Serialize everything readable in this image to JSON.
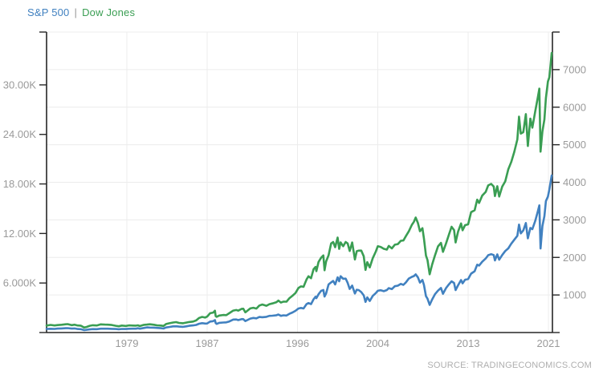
{
  "legend": {
    "sp500_label": "S&P 500",
    "separator": "|",
    "dow_label": "Dow Jones"
  },
  "source": "SOURCE: TRADINGECONOMICS.COM",
  "colors": {
    "sp500": "#4181c0",
    "dow": "#3a9e53",
    "axis": "#262626",
    "grid": "#ececec",
    "tick_label": "#9a9a9a",
    "legend_separator": "#999999",
    "source_text": "#aeaeae",
    "background": "#ffffff"
  },
  "chart_data": {
    "type": "line",
    "title": "",
    "legend_position": "top-left",
    "grid": true,
    "x_axis": {
      "range": [
        1971.0,
        2021.4
      ],
      "tick_values": [
        1979,
        1987,
        1996,
        2004,
        2013,
        2021
      ],
      "tick_labels": [
        "1979",
        "1987",
        "1996",
        "2004",
        "2013",
        "2021"
      ]
    },
    "y_axis_left": {
      "series": "Dow Jones",
      "range": [
        0,
        36400
      ],
      "tick_values": [
        6000,
        12000,
        18000,
        24000,
        30000
      ],
      "tick_labels": [
        "6.000K",
        "12.00K",
        "18.00K",
        "24.00K",
        "30.00K"
      ]
    },
    "y_axis_right": {
      "series": "S&P 500",
      "range": [
        0,
        8000
      ],
      "tick_values": [
        1000,
        2000,
        3000,
        4000,
        5000,
        6000,
        7000
      ],
      "tick_labels": [
        "1000",
        "2000",
        "3000",
        "4000",
        "5000",
        "6000",
        "7000"
      ],
      "gridline_values": [
        1000,
        2000,
        3000,
        4000,
        5000,
        6000,
        7000,
        8000
      ]
    },
    "x": [
      1971.0,
      1971.4,
      1971.8,
      1972.1,
      1972.5,
      1972.9,
      1973.1,
      1973.5,
      1973.8,
      1974.1,
      1974.4,
      1974.75,
      1975.0,
      1975.3,
      1975.6,
      1976.0,
      1976.4,
      1976.8,
      1977.1,
      1977.5,
      1977.9,
      1978.2,
      1978.5,
      1978.9,
      1979.2,
      1979.6,
      1979.9,
      1980.1,
      1980.3,
      1980.7,
      1981.0,
      1981.3,
      1981.7,
      1982.0,
      1982.4,
      1982.65,
      1982.9,
      1983.2,
      1983.6,
      1983.9,
      1984.2,
      1984.6,
      1984.9,
      1985.2,
      1985.6,
      1985.9,
      1986.2,
      1986.5,
      1986.8,
      1987.0,
      1987.3,
      1987.6,
      1987.78,
      1987.85,
      1987.95,
      1988.2,
      1988.6,
      1988.9,
      1989.2,
      1989.6,
      1989.9,
      1990.1,
      1990.45,
      1990.6,
      1990.8,
      1991.0,
      1991.3,
      1991.6,
      1991.9,
      1992.2,
      1992.5,
      1992.9,
      1993.2,
      1993.5,
      1993.9,
      1994.1,
      1994.35,
      1994.6,
      1994.9,
      1995.2,
      1995.5,
      1995.8,
      1996.1,
      1996.35,
      1996.6,
      1996.9,
      1997.1,
      1997.35,
      1997.6,
      1997.8,
      1997.88,
      1998.1,
      1998.35,
      1998.58,
      1998.7,
      1998.85,
      1999.1,
      1999.35,
      1999.55,
      1999.75,
      2000.0,
      2000.15,
      2000.3,
      2000.55,
      2000.8,
      2001.0,
      2001.2,
      2001.45,
      2001.72,
      2001.9,
      2002.1,
      2002.35,
      2002.6,
      2002.78,
      2002.95,
      2003.2,
      2003.5,
      2003.8,
      2004.0,
      2004.3,
      2004.6,
      2004.9,
      2005.1,
      2005.4,
      2005.7,
      2006.0,
      2006.3,
      2006.55,
      2006.8,
      2007.1,
      2007.4,
      2007.6,
      2007.78,
      2008.0,
      2008.2,
      2008.45,
      2008.6,
      2008.8,
      2008.95,
      2009.17,
      2009.4,
      2009.7,
      2010.0,
      2010.3,
      2010.5,
      2010.8,
      2011.1,
      2011.35,
      2011.6,
      2011.75,
      2012.0,
      2012.3,
      2012.45,
      2012.7,
      2013.0,
      2013.3,
      2013.65,
      2013.9,
      2014.1,
      2014.4,
      2014.75,
      2015.0,
      2015.3,
      2015.55,
      2015.67,
      2015.9,
      2016.1,
      2016.4,
      2016.7,
      2017.0,
      2017.3,
      2017.6,
      2017.9,
      2018.07,
      2018.25,
      2018.5,
      2018.75,
      2018.95,
      2019.2,
      2019.4,
      2019.7,
      2019.95,
      2020.1,
      2020.22,
      2020.4,
      2020.6,
      2020.75,
      2020.95,
      2021.1,
      2021.33
    ],
    "series": [
      {
        "name": "S&P 500",
        "axis": "right",
        "color": "#4181c0",
        "values": [
          95,
          101,
          95,
          104,
          108,
          116,
          118,
          104,
          108,
          94,
          90,
          64,
          72,
          84,
          92,
          90,
          102,
          103,
          102,
          99,
          93,
          88,
          96,
          94,
          100,
          103,
          103,
          114,
          102,
          122,
          136,
          133,
          130,
          123,
          116,
          107,
          135,
          148,
          164,
          166,
          157,
          151,
          164,
          180,
          190,
          202,
          235,
          250,
          238,
          242,
          292,
          302,
          330,
          252,
          231,
          258,
          266,
          272,
          295,
          346,
          348,
          330,
          358,
          356,
          306,
          330,
          372,
          388,
          377,
          413,
          408,
          418,
          444,
          448,
          461,
          481,
          444,
          458,
          453,
          500,
          533,
          578,
          640,
          654,
          640,
          757,
          786,
          757,
          885,
          954,
          915,
          1020,
          1110,
          1133,
          957,
          1040,
          1280,
          1335,
          1373,
          1280,
          1469,
          1366,
          1499,
          1431,
          1436,
          1320,
          1160,
          1250,
          1040,
          1140,
          1130,
          1077,
          990,
          815,
          936,
          841,
          975,
          1050,
          1112,
          1126,
          1101,
          1130,
          1181,
          1156,
          1234,
          1248,
          1295,
          1270,
          1336,
          1438,
          1482,
          1503,
          1549,
          1468,
          1330,
          1400,
          1267,
          969,
          903,
          735,
          873,
          1020,
          1115,
          1187,
          1031,
          1183,
          1286,
          1364,
          1321,
          1131,
          1258,
          1398,
          1310,
          1406,
          1426,
          1569,
          1633,
          1806,
          1783,
          1884,
          1972,
          2059,
          2086,
          2063,
          1920,
          2080,
          1940,
          2065,
          2170,
          2239,
          2363,
          2470,
          2575,
          2873,
          2640,
          2718,
          2914,
          2507,
          2784,
          2752,
          2980,
          3231,
          3386,
          2237,
          2830,
          3100,
          3500,
          3621,
          3811,
          4181
        ]
      },
      {
        "name": "Dow Jones",
        "axis": "left",
        "color": "#3a9e53",
        "values": [
          840,
          920,
          850,
          900,
          940,
          1000,
          1020,
          890,
          950,
          850,
          830,
          600,
          680,
          820,
          880,
          852,
          990,
          960,
          950,
          910,
          820,
          760,
          840,
          800,
          860,
          840,
          830,
          870,
          790,
          930,
          960,
          1000,
          940,
          875,
          840,
          800,
          1030,
          1120,
          1210,
          1260,
          1160,
          1130,
          1200,
          1270,
          1330,
          1470,
          1770,
          1890,
          1820,
          1930,
          2340,
          2420,
          2640,
          1990,
          1900,
          2060,
          2130,
          2110,
          2340,
          2660,
          2730,
          2650,
          2870,
          2880,
          2450,
          2630,
          2920,
          3000,
          2900,
          3270,
          3400,
          3240,
          3440,
          3520,
          3680,
          3870,
          3630,
          3750,
          3740,
          4160,
          4460,
          4790,
          5400,
          5590,
          5530,
          6440,
          6810,
          6580,
          7670,
          7945,
          7440,
          8550,
          9060,
          9340,
          7540,
          8600,
          9360,
          10790,
          10970,
          10340,
          11500,
          10130,
          10920,
          10450,
          10970,
          10790,
          9880,
          10910,
          8850,
          9850,
          9920,
          9930,
          9240,
          7590,
          8520,
          7890,
          9000,
          9800,
          10450,
          10360,
          10140,
          10050,
          10490,
          10190,
          10640,
          10720,
          11110,
          11150,
          11680,
          12270,
          13060,
          13410,
          13930,
          13260,
          12270,
          12640,
          11380,
          9325,
          8780,
          7060,
          8170,
          9340,
          10430,
          10860,
          9770,
          10790,
          11890,
          12810,
          12410,
          10910,
          12220,
          13210,
          12390,
          13010,
          13100,
          14580,
          14810,
          16090,
          15700,
          16580,
          17040,
          17820,
          18010,
          17690,
          16530,
          17720,
          16470,
          17690,
          18310,
          19760,
          20660,
          21890,
          23380,
          26150,
          24100,
          24270,
          26460,
          22600,
          25920,
          24820,
          26860,
          28540,
          29550,
          21920,
          24350,
          25810,
          28430,
          30410,
          30930,
          33880
        ]
      }
    ]
  }
}
